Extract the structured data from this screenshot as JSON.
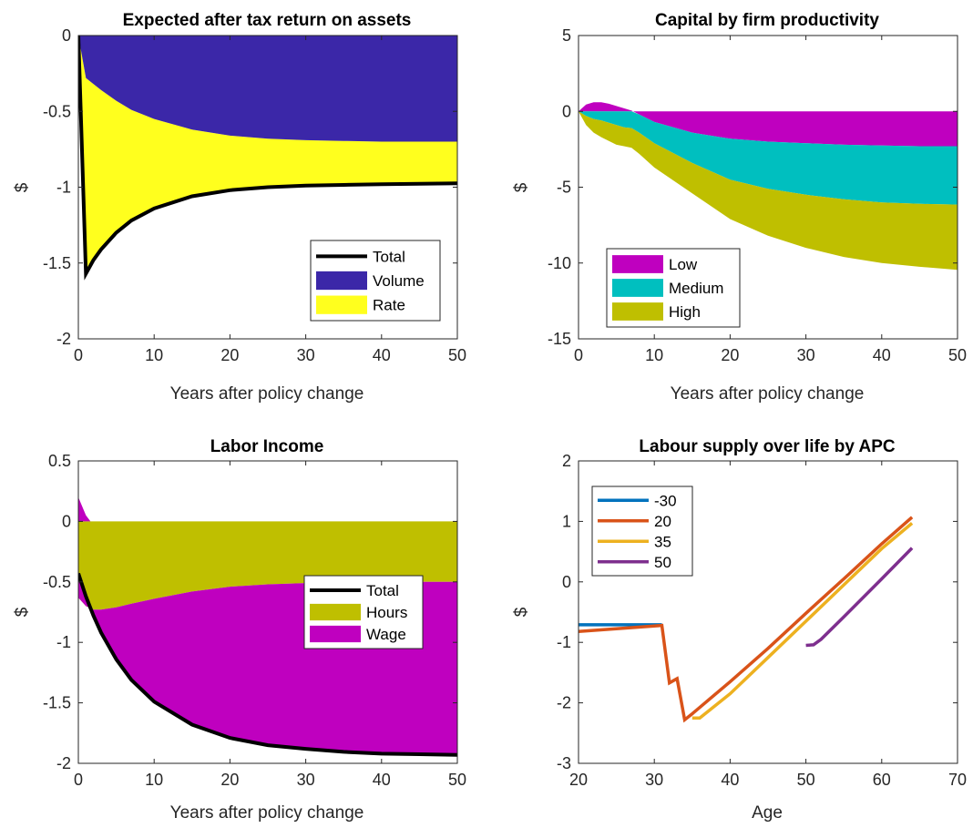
{
  "chart_data": [
    {
      "type": "area",
      "title": "Expected after tax return on assets",
      "xlabel": "Years after policy change",
      "ylabel": "$",
      "xlim": [
        0,
        50
      ],
      "ylim": [
        -2,
        0
      ],
      "xticks": [
        "0",
        "10",
        "20",
        "30",
        "40",
        "50"
      ],
      "yticks": [
        "0",
        "-0.5",
        "-1",
        "-1.5",
        "-2"
      ],
      "legend_position": "bottom-right",
      "colors": {
        "Total": "#000000",
        "Volume": "#3b27a8",
        "Rate": "#ffff1e"
      },
      "series": [
        {
          "name": "Total",
          "kind": "line",
          "x": [
            0,
            1,
            2,
            3,
            5,
            7,
            10,
            15,
            20,
            25,
            30,
            35,
            40,
            45,
            50
          ],
          "values": [
            0,
            -1.57,
            -1.48,
            -1.41,
            -1.3,
            -1.22,
            -1.14,
            -1.06,
            -1.02,
            -1.0,
            -0.99,
            -0.985,
            -0.98,
            -0.978,
            -0.975
          ]
        },
        {
          "name": "Volume",
          "kind": "area",
          "x": [
            0,
            1,
            2,
            3,
            5,
            7,
            10,
            15,
            20,
            25,
            30,
            35,
            40,
            45,
            50
          ],
          "values": [
            0,
            -0.28,
            -0.32,
            -0.36,
            -0.43,
            -0.49,
            -0.55,
            -0.62,
            -0.66,
            -0.68,
            -0.69,
            -0.695,
            -0.7,
            -0.7,
            -0.7
          ]
        },
        {
          "name": "Rate",
          "kind": "area",
          "x": [
            0,
            1,
            2,
            3,
            5,
            7,
            10,
            15,
            20,
            25,
            30,
            35,
            40,
            45,
            50
          ],
          "values": [
            0,
            -1.29,
            -1.16,
            -1.05,
            -0.87,
            -0.73,
            -0.59,
            -0.44,
            -0.36,
            -0.32,
            -0.3,
            -0.29,
            -0.28,
            -0.278,
            -0.275
          ]
        }
      ]
    },
    {
      "type": "area",
      "title": "Capital by firm productivity",
      "xlabel": "Years after policy change",
      "ylabel": "$",
      "xlim": [
        0,
        50
      ],
      "ylim": [
        -15,
        5
      ],
      "xticks": [
        "0",
        "10",
        "20",
        "30",
        "40",
        "50"
      ],
      "yticks": [
        "5",
        "0",
        "-5",
        "-10",
        "-15"
      ],
      "legend_position": "bottom-left",
      "colors": {
        "Low": "#bf00bf",
        "Medium": "#00bfbf",
        "High": "#bfbf00"
      },
      "series": [
        {
          "name": "Low",
          "x": [
            0,
            1,
            2,
            3,
            4,
            5,
            6,
            7,
            8,
            10,
            15,
            20,
            25,
            30,
            35,
            40,
            45,
            50
          ],
          "values": [
            0,
            0.45,
            0.6,
            0.6,
            0.5,
            0.35,
            0.2,
            0.05,
            -0.2,
            -0.7,
            -1.4,
            -1.8,
            -2.0,
            -2.1,
            -2.2,
            -2.25,
            -2.3,
            -2.3
          ]
        },
        {
          "name": "Medium",
          "x": [
            0,
            1,
            2,
            3,
            4,
            5,
            6,
            7,
            8,
            10,
            15,
            20,
            25,
            30,
            35,
            40,
            45,
            50
          ],
          "values": [
            0,
            -0.3,
            -0.5,
            -0.6,
            -0.75,
            -0.9,
            -1.05,
            -1.1,
            -1.2,
            -1.4,
            -2.0,
            -2.7,
            -3.1,
            -3.4,
            -3.6,
            -3.75,
            -3.8,
            -3.85
          ]
        },
        {
          "name": "High",
          "x": [
            0,
            1,
            2,
            3,
            4,
            5,
            6,
            7,
            8,
            10,
            15,
            20,
            25,
            30,
            35,
            40,
            45,
            50
          ],
          "values": [
            0,
            -0.6,
            -0.9,
            -1.1,
            -1.2,
            -1.3,
            -1.25,
            -1.3,
            -1.4,
            -1.6,
            -2.0,
            -2.6,
            -3.1,
            -3.5,
            -3.8,
            -4.0,
            -4.15,
            -4.3
          ]
        }
      ]
    },
    {
      "type": "area",
      "title": "Labor Income",
      "xlabel": "Years after policy change",
      "ylabel": "$",
      "xlim": [
        0,
        50
      ],
      "ylim": [
        -2,
        0.5
      ],
      "xticks": [
        "0",
        "10",
        "20",
        "30",
        "40",
        "50"
      ],
      "yticks": [
        "0.5",
        "0",
        "-0.5",
        "-1",
        "-1.5",
        "-2"
      ],
      "legend_position": "center-right",
      "colors": {
        "Total": "#000000",
        "Hours": "#bfbf00",
        "Wage": "#bf00bf"
      },
      "series": [
        {
          "name": "Total",
          "kind": "line",
          "x": [
            0,
            1,
            2,
            3,
            5,
            7,
            10,
            15,
            20,
            25,
            30,
            35,
            40,
            45,
            50
          ],
          "values": [
            -0.43,
            -0.62,
            -0.78,
            -0.92,
            -1.14,
            -1.31,
            -1.49,
            -1.68,
            -1.79,
            -1.85,
            -1.88,
            -1.905,
            -1.92,
            -1.925,
            -1.93
          ]
        },
        {
          "name": "Hours",
          "kind": "area",
          "x": [
            0,
            1,
            2,
            3,
            5,
            7,
            10,
            15,
            20,
            25,
            30,
            35,
            40,
            45,
            50
          ],
          "values": [
            -0.63,
            -0.7,
            -0.73,
            -0.73,
            -0.71,
            -0.68,
            -0.64,
            -0.58,
            -0.54,
            -0.52,
            -0.51,
            -0.505,
            -0.5,
            -0.5,
            -0.5
          ]
        },
        {
          "name": "Wage",
          "kind": "area",
          "x": [
            0,
            1,
            2,
            3,
            5,
            7,
            10,
            15,
            20,
            25,
            30,
            35,
            40,
            45,
            50
          ],
          "values": [
            0.2,
            0.08,
            -0.05,
            -0.19,
            -0.43,
            -0.63,
            -0.85,
            -1.1,
            -1.25,
            -1.33,
            -1.37,
            -1.4,
            -1.42,
            -1.425,
            -1.43
          ]
        }
      ]
    },
    {
      "type": "line",
      "title": "Labour supply over life by APC",
      "xlabel": "Age",
      "ylabel": "$",
      "xlim": [
        20,
        70
      ],
      "ylim": [
        -3,
        2
      ],
      "xticks": [
        "20",
        "30",
        "40",
        "50",
        "60",
        "70"
      ],
      "yticks": [
        "2",
        "1",
        "0",
        "-1",
        "-2",
        "-3"
      ],
      "legend_position": "top-left",
      "series": [
        {
          "name": "-30",
          "color": "#0072bd",
          "x": [
            20,
            31
          ],
          "values": [
            -0.71,
            -0.71
          ]
        },
        {
          "name": "20",
          "color": "#d95319",
          "x": [
            20,
            31,
            32,
            33,
            34,
            35,
            40,
            45,
            50,
            55,
            60,
            64
          ],
          "values": [
            -0.82,
            -0.72,
            -1.67,
            -1.6,
            -2.28,
            -2.18,
            -1.65,
            -1.1,
            -0.52,
            0.05,
            0.63,
            1.07
          ]
        },
        {
          "name": "35",
          "color": "#edb120",
          "x": [
            35,
            36,
            40,
            45,
            50,
            55,
            60,
            64
          ],
          "values": [
            -2.25,
            -2.25,
            -1.85,
            -1.25,
            -0.65,
            -0.05,
            0.55,
            0.97
          ]
        },
        {
          "name": "50",
          "color": "#7e2f8e",
          "x": [
            50,
            51,
            52,
            55,
            60,
            64
          ],
          "values": [
            -1.05,
            -1.04,
            -0.95,
            -0.58,
            0.05,
            0.56
          ]
        }
      ]
    }
  ]
}
